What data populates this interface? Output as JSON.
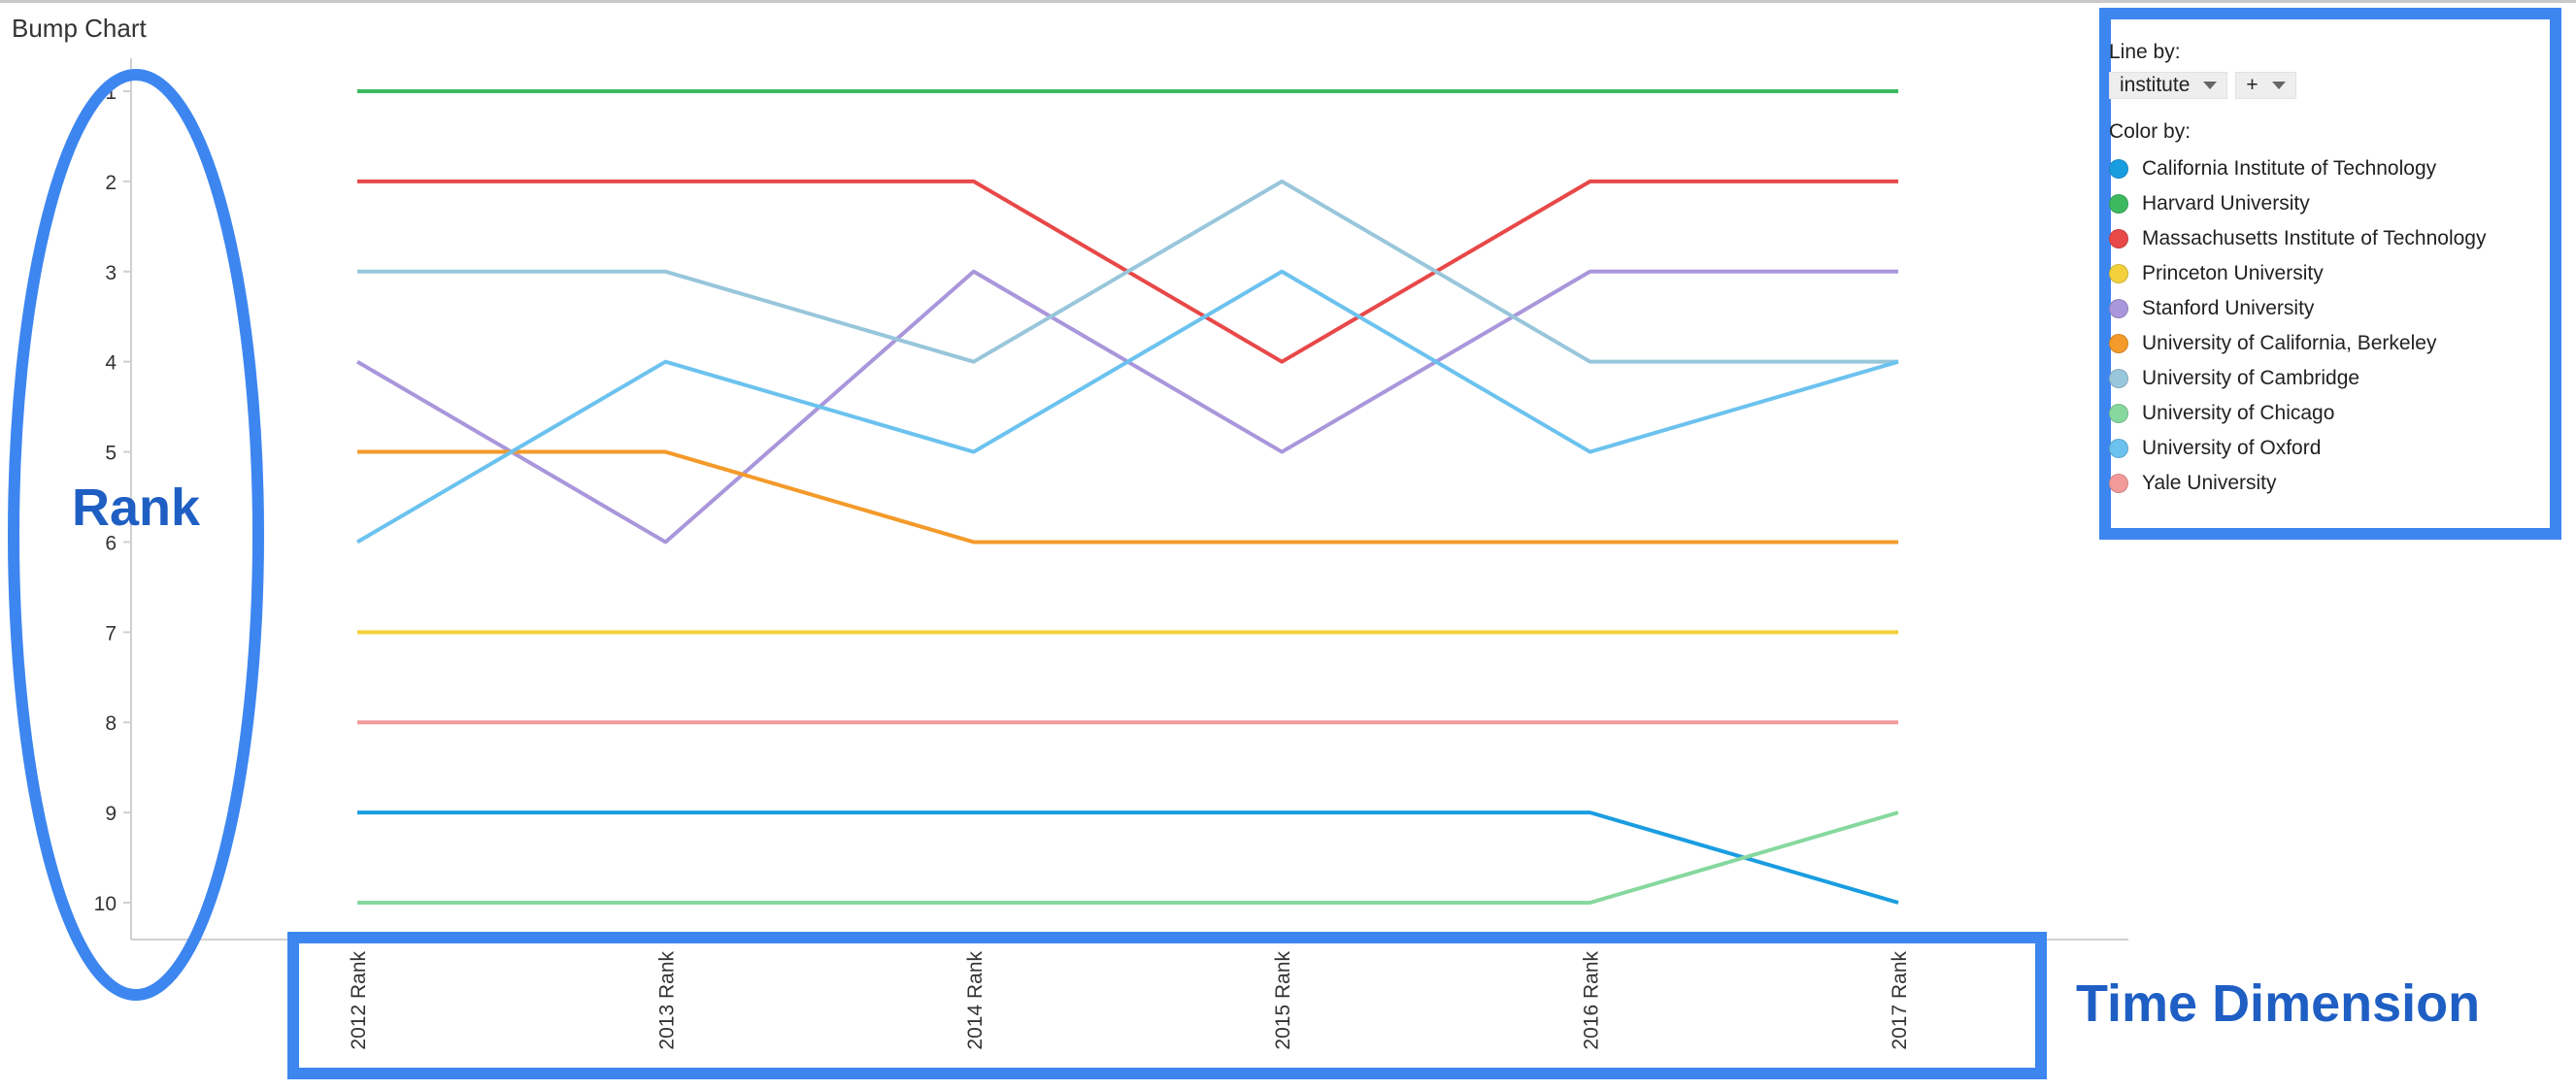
{
  "chart_data": {
    "type": "line",
    "title": "Bump Chart",
    "categories": [
      "2012 Rank",
      "2013 Rank",
      "2014 Rank",
      "2015 Rank",
      "2016 Rank",
      "2017 Rank"
    ],
    "y_ticks": [
      "1",
      "2",
      "3",
      "4",
      "5",
      "6",
      "7",
      "8",
      "9",
      "10"
    ],
    "ylim": [
      1,
      10
    ],
    "y_inverted": true,
    "grid": false,
    "series": [
      {
        "name": "California Institute of Technology",
        "color": "#1a9de0",
        "values": [
          9,
          9,
          9,
          9,
          9,
          10
        ]
      },
      {
        "name": "Harvard University",
        "color": "#3cb95e",
        "values": [
          1,
          1,
          1,
          1,
          1,
          1
        ]
      },
      {
        "name": "Massachusetts Institute of Technology",
        "color": "#e84848",
        "values": [
          2,
          2,
          2,
          4,
          2,
          2
        ]
      },
      {
        "name": "Princeton University",
        "color": "#f2d13c",
        "values": [
          7,
          7,
          7,
          7,
          7,
          7
        ]
      },
      {
        "name": "Stanford University",
        "color": "#a996db",
        "values": [
          4,
          6,
          3,
          5,
          3,
          3
        ]
      },
      {
        "name": "University of California, Berkeley",
        "color": "#f39a2a",
        "values": [
          5,
          5,
          6,
          6,
          6,
          6
        ]
      },
      {
        "name": "University of Cambridge",
        "color": "#98c6db",
        "values": [
          3,
          3,
          4,
          2,
          4,
          4
        ]
      },
      {
        "name": "University of Chicago",
        "color": "#86d89e",
        "values": [
          10,
          10,
          10,
          10,
          10,
          9
        ]
      },
      {
        "name": "University of Oxford",
        "color": "#6cc2ee",
        "values": [
          6,
          4,
          5,
          3,
          5,
          4
        ]
      },
      {
        "name": "Yale University",
        "color": "#f29a9a",
        "values": [
          8,
          8,
          8,
          8,
          8,
          8
        ]
      }
    ]
  },
  "legend": {
    "line_by_label": "Line by:",
    "line_by_value": "institute",
    "plus_label": "+",
    "color_by_label": "Color by:"
  },
  "annotations": {
    "rank": "Rank",
    "time": "Time Dimension",
    "color": "#3d86f0"
  }
}
